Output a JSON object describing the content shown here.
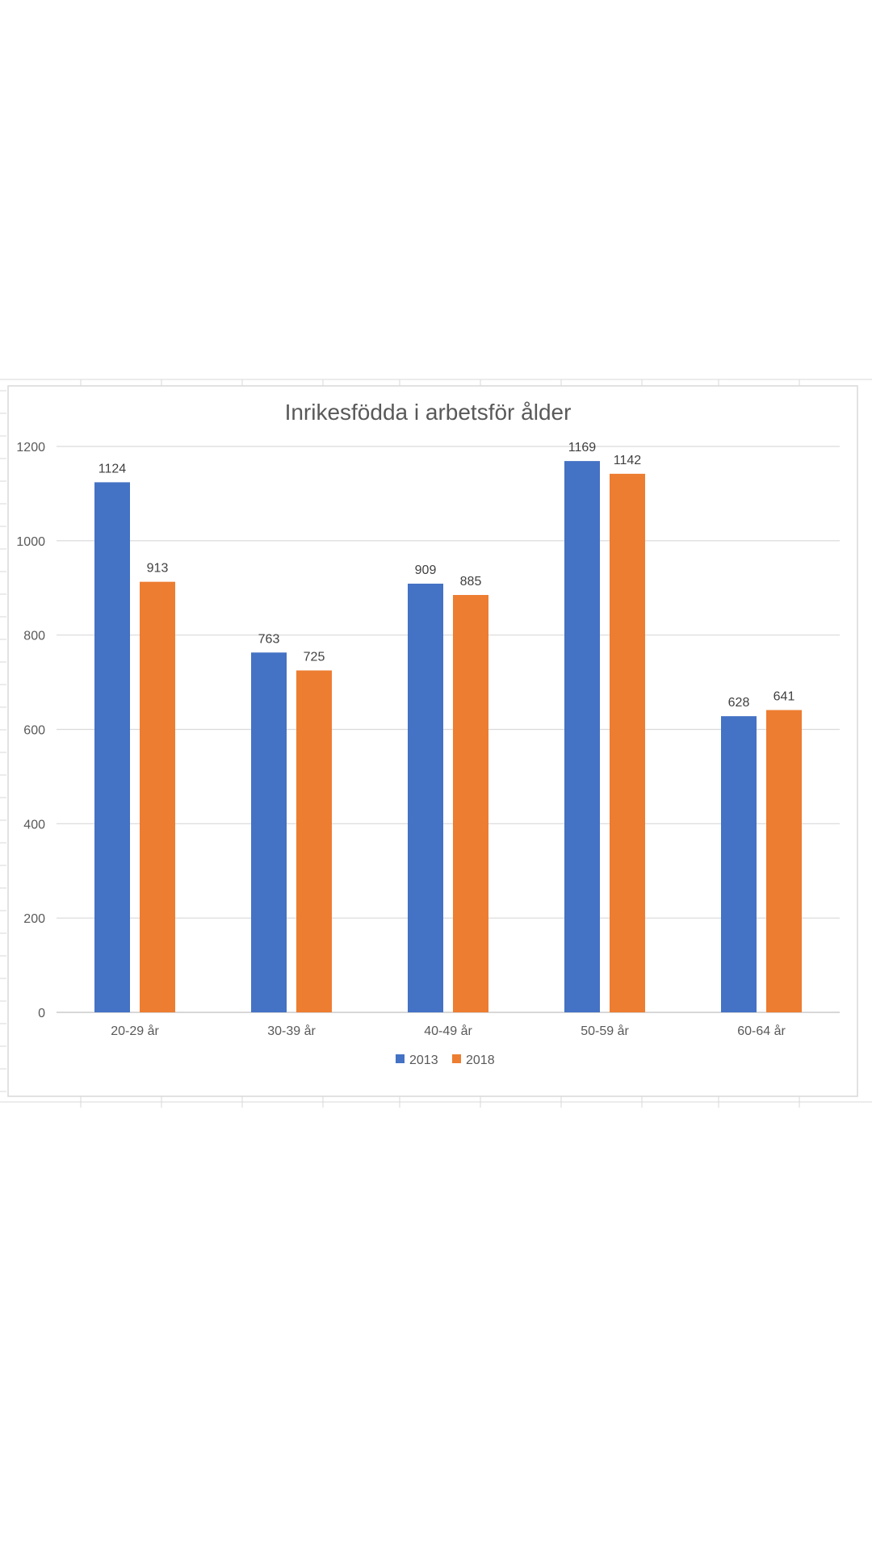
{
  "chart_data": {
    "type": "bar",
    "title": "Inrikesfödda i arbetsför ålder",
    "xlabel": "",
    "ylabel": "",
    "categories": [
      "20-29 år",
      "30-39 år",
      "40-49 år",
      "50-59 år",
      "60-64 år"
    ],
    "series": [
      {
        "name": "2013",
        "color": "#4472C4",
        "values": [
          1124,
          763,
          909,
          1169,
          628
        ]
      },
      {
        "name": "2018",
        "color": "#ED7D31",
        "values": [
          913,
          725,
          885,
          1142,
          641
        ]
      }
    ],
    "ylim": [
      0,
      1200
    ],
    "yticks": [
      0,
      200,
      400,
      600,
      800,
      1000,
      1200
    ],
    "grid": true,
    "legend_position": "bottom"
  }
}
